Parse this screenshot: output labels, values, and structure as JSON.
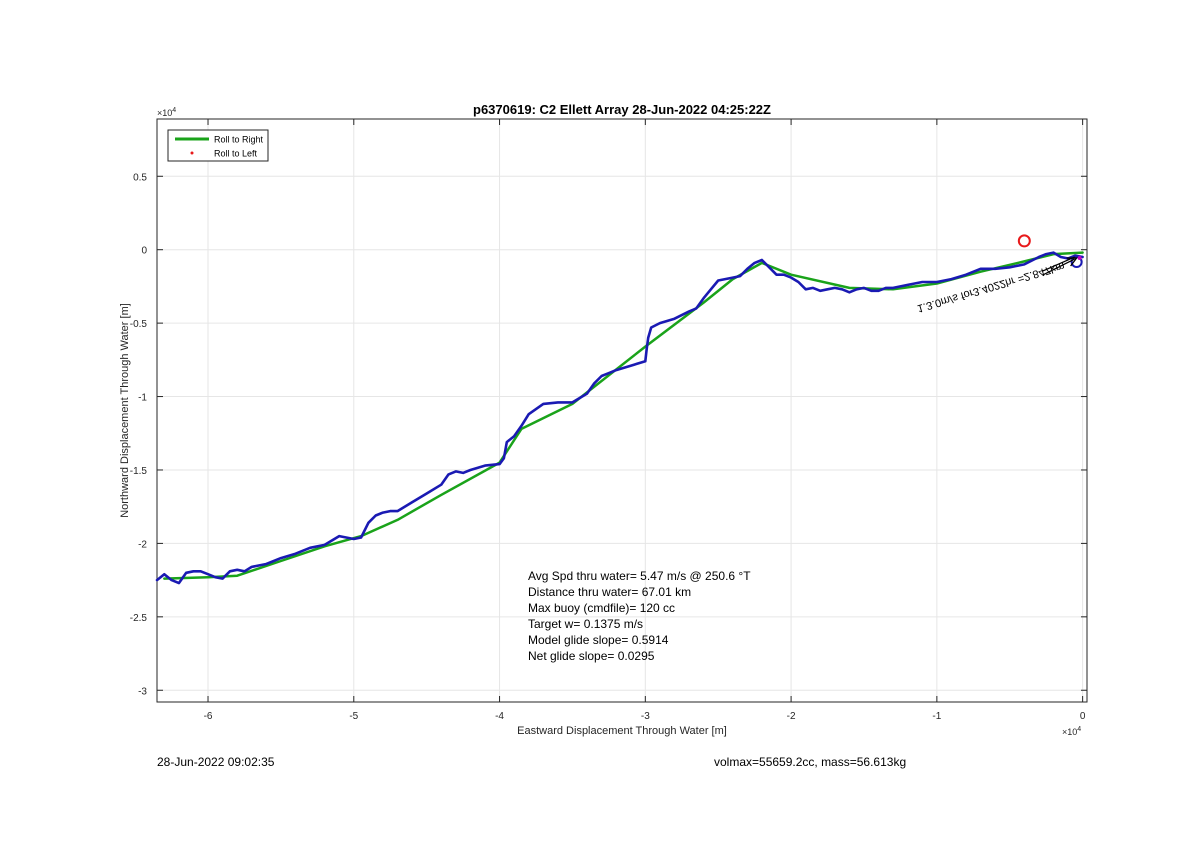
{
  "chart_data": {
    "type": "line",
    "title": "p6370619: C2 Ellett Array 28-Jun-2022 04:25:22Z",
    "xlabel": "Eastward Displacement Through Water [m]",
    "ylabel": "Northward Displacement Through Water [m]",
    "x_exponent_label": "×10",
    "x_exponent": "4",
    "y_exponent_label": "×10",
    "y_exponent": "4",
    "xlim": [
      -6.35,
      0.03
    ],
    "ylim": [
      -3.08,
      0.89
    ],
    "xticks": [
      -6,
      -5,
      -4,
      -3,
      -2,
      -1,
      0
    ],
    "xtick_labels": [
      "-6",
      "-5",
      "-4",
      "-3",
      "-2",
      "-1",
      "0"
    ],
    "yticks": [
      0.5,
      0,
      -0.5,
      -1,
      -1.5,
      -2,
      -2.5,
      -3
    ],
    "ytick_labels": [
      "0.5",
      "0",
      "-0.5",
      "-1",
      "-1.5",
      "-2",
      "-2.5",
      "-3"
    ],
    "grid": true,
    "legend_position": "top-left",
    "legend": [
      {
        "label": "Roll to Right",
        "color": "#1aa31a",
        "marker": "line"
      },
      {
        "label": "Roll to Left",
        "color": "#e8191a",
        "marker": "dot"
      }
    ],
    "series": [
      {
        "name": "Roll to Right",
        "color": "#1aa31a",
        "x": [
          -6.3,
          -6.0,
          -5.8,
          -5.5,
          -5.2,
          -4.95,
          -4.7,
          -4.4,
          -4.0,
          -3.85,
          -3.5,
          -3.0,
          -2.6,
          -2.4,
          -2.2,
          -2.0,
          -1.6,
          -1.3,
          -1.0,
          -0.7,
          -0.4,
          -0.2,
          0.0
        ],
        "y": [
          -2.24,
          -2.23,
          -2.22,
          -2.12,
          -2.02,
          -1.95,
          -1.84,
          -1.67,
          -1.45,
          -1.22,
          -1.05,
          -0.66,
          -0.36,
          -0.2,
          -0.09,
          -0.17,
          -0.26,
          -0.27,
          -0.23,
          -0.15,
          -0.08,
          -0.03,
          -0.02
        ]
      },
      {
        "name": "",
        "color": "#1a1ab3",
        "x": [
          -6.35,
          -6.3,
          -6.25,
          -6.2,
          -6.15,
          -6.1,
          -6.05,
          -6.0,
          -5.95,
          -5.9,
          -5.85,
          -5.8,
          -5.75,
          -5.7,
          -5.6,
          -5.5,
          -5.4,
          -5.3,
          -5.2,
          -5.1,
          -5.0,
          -4.95,
          -4.9,
          -4.85,
          -4.8,
          -4.75,
          -4.7,
          -4.6,
          -4.5,
          -4.4,
          -4.35,
          -4.3,
          -4.25,
          -4.2,
          -4.1,
          -4.0,
          -3.97,
          -3.95,
          -3.9,
          -3.85,
          -3.8,
          -3.7,
          -3.6,
          -3.5,
          -3.4,
          -3.35,
          -3.3,
          -3.25,
          -3.2,
          -3.1,
          -3.0,
          -2.99,
          -2.98,
          -2.96,
          -2.9,
          -2.8,
          -2.7,
          -2.65,
          -2.6,
          -2.55,
          -2.5,
          -2.4,
          -2.35,
          -2.3,
          -2.25,
          -2.2,
          -2.15,
          -2.1,
          -2.05,
          -2.0,
          -1.95,
          -1.9,
          -1.85,
          -1.8,
          -1.75,
          -1.7,
          -1.65,
          -1.6,
          -1.55,
          -1.5,
          -1.45,
          -1.4,
          -1.35,
          -1.3,
          -1.2,
          -1.1,
          -1.0,
          -0.9,
          -0.8,
          -0.7,
          -0.6,
          -0.5,
          -0.4,
          -0.3,
          -0.25,
          -0.2,
          -0.15,
          -0.1,
          -0.05,
          0.0
        ],
        "y": [
          -2.25,
          -2.21,
          -2.25,
          -2.27,
          -2.2,
          -2.19,
          -2.19,
          -2.21,
          -2.23,
          -2.24,
          -2.19,
          -2.18,
          -2.19,
          -2.16,
          -2.14,
          -2.1,
          -2.07,
          -2.03,
          -2.01,
          -1.95,
          -1.97,
          -1.96,
          -1.86,
          -1.81,
          -1.79,
          -1.78,
          -1.78,
          -1.72,
          -1.66,
          -1.6,
          -1.53,
          -1.51,
          -1.52,
          -1.5,
          -1.47,
          -1.46,
          -1.42,
          -1.31,
          -1.27,
          -1.2,
          -1.12,
          -1.05,
          -1.04,
          -1.04,
          -0.98,
          -0.91,
          -0.86,
          -0.84,
          -0.82,
          -0.79,
          -0.76,
          -0.67,
          -0.6,
          -0.53,
          -0.5,
          -0.47,
          -0.42,
          -0.4,
          -0.33,
          -0.27,
          -0.21,
          -0.19,
          -0.18,
          -0.13,
          -0.09,
          -0.07,
          -0.12,
          -0.17,
          -0.17,
          -0.19,
          -0.22,
          -0.27,
          -0.26,
          -0.28,
          -0.27,
          -0.26,
          -0.27,
          -0.29,
          -0.27,
          -0.26,
          -0.28,
          -0.28,
          -0.26,
          -0.26,
          -0.24,
          -0.22,
          -0.22,
          -0.2,
          -0.17,
          -0.13,
          -0.13,
          -0.12,
          -0.1,
          -0.05,
          -0.03,
          -0.02,
          -0.05,
          -0.06,
          -0.04,
          -0.05
        ]
      }
    ],
    "marker_circle": {
      "x": -0.4,
      "y": 0.06,
      "color": "#e8191a"
    },
    "rotated_annotation": "1.3.0m/s for3.4022hr =2.847km",
    "stats": [
      "Avg Spd thru water=  5.47 m/s @ 250.6 °T",
      "Distance thru water= 67.01 km",
      "Max buoy (cmdfile)= 120 cc",
      "Target w= 0.1375 m/s",
      "Model glide slope= 0.5914",
      "Net glide slope= 0.0295"
    ]
  },
  "footer": {
    "timestamp": "28-Jun-2022 09:02:35",
    "volmax_mass": "volmax=55659.2cc, mass=56.613kg"
  }
}
